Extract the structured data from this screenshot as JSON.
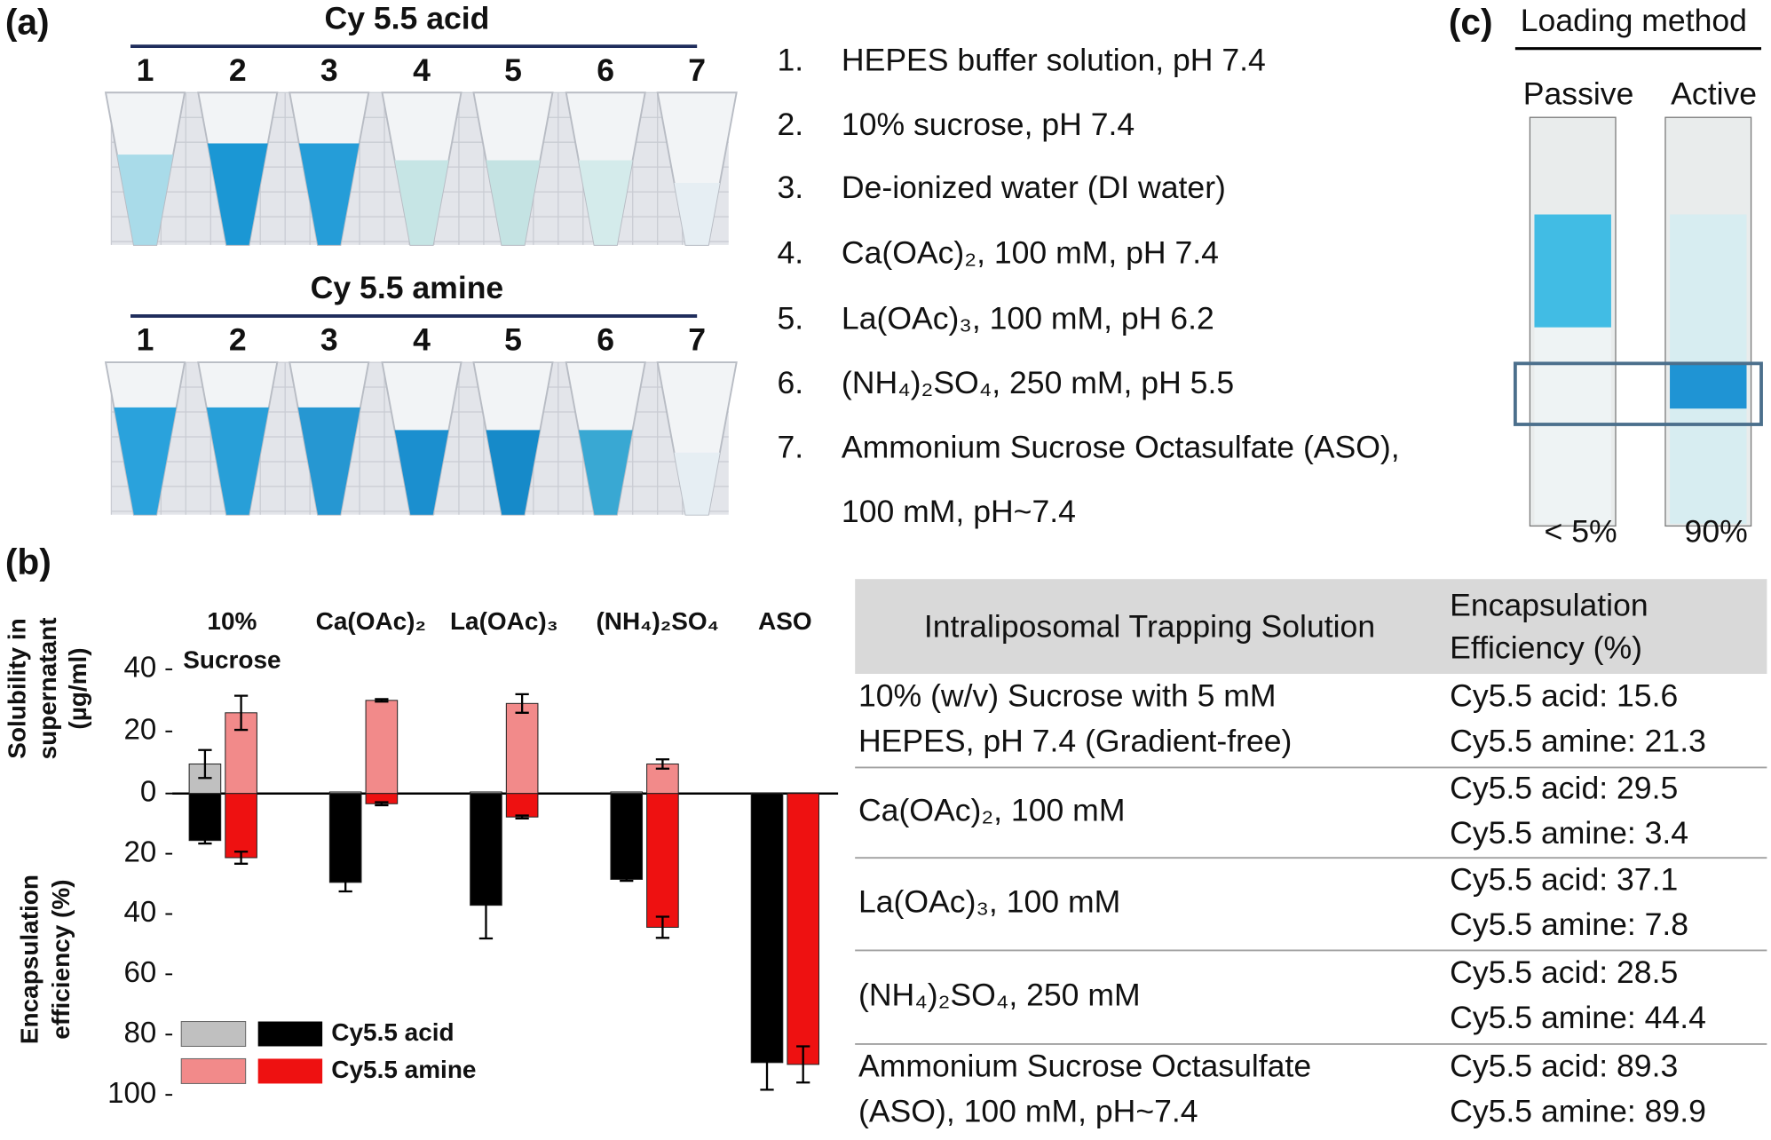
{
  "panel_a": {
    "label": "(a)",
    "groups": [
      {
        "title": "Cy 5.5 acid",
        "tube_numbers": [
          "1",
          "2",
          "3",
          "4",
          "5",
          "6",
          "7"
        ]
      },
      {
        "title": "Cy 5.5 amine",
        "tube_numbers": [
          "1",
          "2",
          "3",
          "4",
          "5",
          "6",
          "7"
        ]
      }
    ],
    "legend_items": [
      {
        "number": "1.",
        "lines": [
          "HEPES buffer solution, pH 7.4"
        ]
      },
      {
        "number": "2.",
        "lines": [
          "10% sucrose, pH 7.4"
        ]
      },
      {
        "number": "3.",
        "lines": [
          "De-ionized water (DI water)"
        ]
      },
      {
        "number": "4.",
        "lines": [
          "Ca(OAc)₂, 100 mM, pH 7.4"
        ]
      },
      {
        "number": "5.",
        "lines": [
          "La(OAc)₃, 100 mM, pH 6.2"
        ]
      },
      {
        "number": "6.",
        "lines": [
          "(NH₄)₂SO₄, 250 mM, pH 5.5"
        ]
      },
      {
        "number": "7.",
        "lines": [
          "Ammonium Sucrose Octasulfate (ASO),",
          "100 mM, pH~7.4"
        ]
      }
    ]
  },
  "chart_data": {
    "type": "bar",
    "panel_label": "(b)",
    "categories": [
      [
        "10%",
        "Sucrose"
      ],
      [
        "Ca(OAc)₂"
      ],
      [
        "La(OAc)₃"
      ],
      [
        "(NH₄)₂SO₄"
      ],
      [
        "ASO"
      ]
    ],
    "y_label": [
      "Solubility in",
      "supernatant",
      "(µg/ml)"
    ],
    "y2_label": [
      "Encapsulation",
      "efficiency (%)"
    ],
    "ylim": [
      0,
      40
    ],
    "yticks": [
      0,
      20,
      40
    ],
    "y2lim": [
      0,
      100
    ],
    "y2ticks": [
      20,
      40,
      60,
      80,
      100
    ],
    "series": [
      {
        "name": "Cy5.5 acid",
        "color": "#000000",
        "light_color": "#c0c0c0",
        "solubility": [
          9.5,
          0.5,
          0.5,
          0.5,
          0
        ],
        "solubility_error": [
          4.5,
          0,
          0,
          0,
          0
        ],
        "efficiency": [
          15.6,
          29.5,
          37.1,
          28.5,
          89.3
        ],
        "efficiency_error": [
          1,
          3,
          11,
          0.5,
          9
        ]
      },
      {
        "name": "Cy5.5 amine",
        "color": "#ee1111",
        "light_color": "#f28a8a",
        "solubility": [
          26,
          30,
          29,
          9.5,
          0
        ],
        "solubility_error": [
          5.5,
          0.4,
          3,
          1.5,
          0
        ],
        "efficiency": [
          21.3,
          3.4,
          7.8,
          44.4,
          89.9
        ],
        "efficiency_error": [
          2,
          0.5,
          0.5,
          3.5,
          6
        ]
      }
    ]
  },
  "panel_c": {
    "label": "(c)",
    "title": "Loading method",
    "columns": [
      "Passive",
      "Active"
    ],
    "results": [
      "< 5%",
      "90%"
    ]
  },
  "table": {
    "header": [
      [
        "Intraliposomal Trapping Solution"
      ],
      [
        "Encapsulation",
        "Efficiency (%)"
      ]
    ],
    "rows": [
      [
        [
          "10% (w/v) Sucrose with 5 mM",
          "HEPES, pH 7.4 (Gradient-free)"
        ],
        [
          "Cy5.5 acid: 15.6",
          "Cy5.5 amine: 21.3"
        ]
      ],
      [
        [
          "Ca(OAc)₂, 100 mM"
        ],
        [
          "Cy5.5 acid: 29.5",
          "Cy5.5 amine: 3.4"
        ]
      ],
      [
        [
          "La(OAc)₃, 100 mM"
        ],
        [
          "Cy5.5 acid: 37.1",
          "Cy5.5 amine: 7.8"
        ]
      ],
      [
        [
          " (NH₄)₂SO₄, 250 mM"
        ],
        [
          "Cy5.5 acid: 28.5",
          "Cy5.5 amine: 44.4"
        ]
      ],
      [
        [
          "Ammonium Sucrose Octasulfate",
          "(ASO), 100 mM, pH~7.4"
        ],
        [
          "Cy5.5 acid: 89.3",
          "Cy5.5 amine: 89.9"
        ]
      ]
    ]
  }
}
